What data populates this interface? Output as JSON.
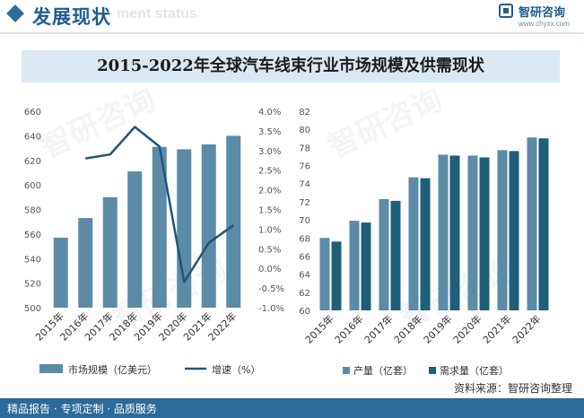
{
  "header": {
    "title": "发展现状",
    "subtitle": "ment status",
    "logo_text": "智研咨询",
    "logo_url": "www.chyxx.com"
  },
  "chart_title": "2015-2022年全球汽车线束行业市场规模及供需现状",
  "watermark": "智研咨询",
  "footer": {
    "left": "精品报告 · 专项定制 · 品质服务",
    "source": "资料来源：智研咨询整理"
  },
  "colors": {
    "bar": "#5b8ba6",
    "line": "#1f5679",
    "supply": "#5b8ba6",
    "demand": "#1f5f78",
    "header": "#1f5d8c",
    "footer": "#2c6a98"
  },
  "chart_data": [
    {
      "type": "bar+line",
      "categories": [
        "2015年",
        "2016年",
        "2017年",
        "2018年",
        "2019年",
        "2020年",
        "2021年",
        "2022年"
      ],
      "series": [
        {
          "name": "市场规模（亿美元）",
          "type": "bar",
          "axis": "left",
          "values": [
            557,
            573,
            590,
            611,
            631,
            629,
            633,
            640
          ]
        },
        {
          "name": "增速（%）",
          "type": "line",
          "axis": "right",
          "values": [
            null,
            2.8,
            2.9,
            3.6,
            3.1,
            -0.35,
            0.65,
            1.1
          ]
        }
      ],
      "y_left": {
        "min": 500,
        "max": 660,
        "step": 20,
        "ticks": [
          "500",
          "520",
          "540",
          "560",
          "580",
          "600",
          "620",
          "640",
          "660"
        ]
      },
      "y_right": {
        "min": -1.0,
        "max": 4.0,
        "step": 0.5,
        "ticks": [
          "-1.0%",
          "-0.5%",
          "0.0%",
          "0.5%",
          "1.0%",
          "1.5%",
          "2.0%",
          "2.5%",
          "3.0%",
          "3.5%",
          "4.0%"
        ]
      },
      "legend": [
        "市场规模（亿美元）",
        "增速（%）"
      ],
      "legend_position": "bottom"
    },
    {
      "type": "bar",
      "categories": [
        "2015年",
        "2016年",
        "2017年",
        "2018年",
        "2019年",
        "2020年",
        "2021年",
        "2022年"
      ],
      "series": [
        {
          "name": "产量（亿套）",
          "values": [
            68.0,
            69.9,
            72.3,
            74.7,
            77.2,
            77.1,
            77.7,
            79.1
          ]
        },
        {
          "name": "需求量（亿套）",
          "values": [
            67.6,
            69.7,
            72.1,
            74.6,
            77.1,
            76.9,
            77.6,
            79.0
          ]
        }
      ],
      "y": {
        "min": 60,
        "max": 82,
        "step": 2,
        "ticks": [
          "60",
          "62",
          "64",
          "66",
          "68",
          "70",
          "72",
          "74",
          "76",
          "78",
          "80",
          "82"
        ]
      },
      "legend": [
        "产量（亿套）",
        "需求量（亿套）"
      ],
      "legend_position": "bottom"
    }
  ]
}
